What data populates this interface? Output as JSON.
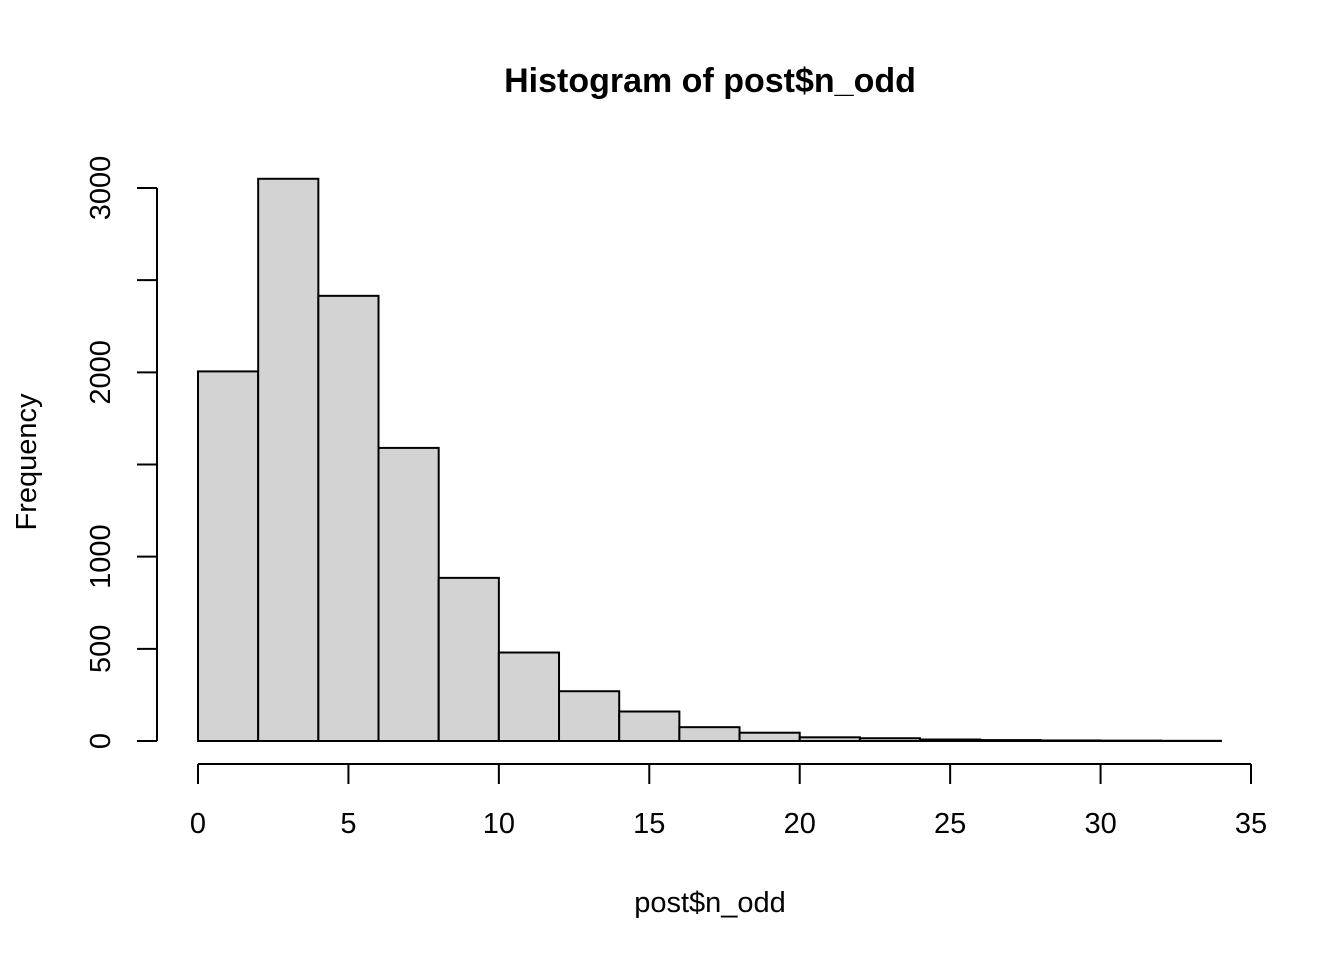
{
  "chart_data": {
    "type": "bar",
    "title": "Histogram of post$n_odd",
    "xlabel": "post$n_odd",
    "ylabel": "Frequency",
    "bin_edges": [
      0,
      2,
      4,
      6,
      8,
      10,
      12,
      14,
      16,
      18,
      20,
      22,
      24,
      26,
      28,
      30,
      32,
      34
    ],
    "values": [
      2005,
      3050,
      2415,
      1590,
      885,
      480,
      270,
      160,
      75,
      45,
      20,
      15,
      8,
      5,
      3,
      2,
      1
    ],
    "xlim": [
      0,
      35
    ],
    "ylim": [
      0,
      3050
    ],
    "x_ticks": [
      0,
      5,
      10,
      15,
      20,
      25,
      30,
      35
    ],
    "x_tick_labels": [
      "0",
      "5",
      "10",
      "15",
      "20",
      "25",
      "30",
      "35"
    ],
    "y_ticks": [
      0,
      500,
      1000,
      1500,
      2000,
      2500,
      3000
    ],
    "y_tick_labels": [
      "0",
      "500",
      "1000",
      "",
      "2000",
      "",
      "3000"
    ],
    "bar_color": "#d3d3d3",
    "grid": false,
    "legend": "none"
  }
}
